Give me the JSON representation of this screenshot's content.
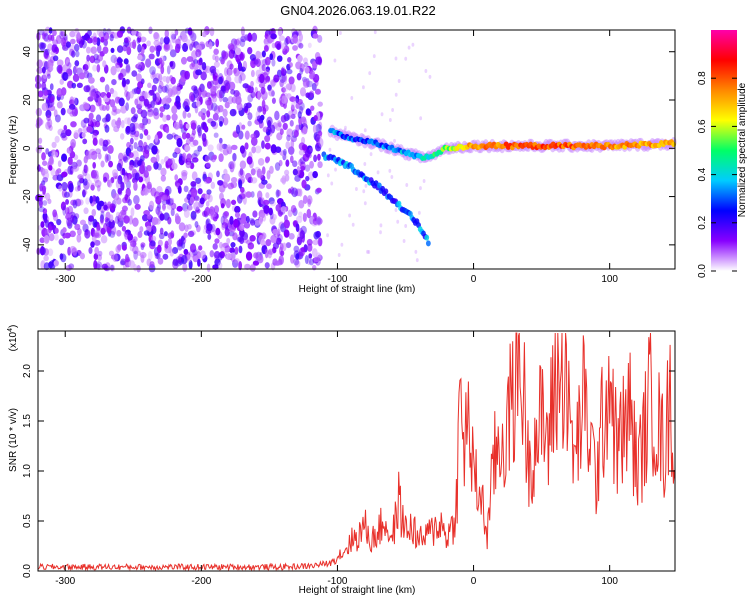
{
  "title": "GN04.2026.063.19.01.R22",
  "chart_data": [
    {
      "type": "heatmap",
      "xlabel": "Height of straight line (km)",
      "ylabel": "Frequency (Hz)",
      "xlim": [
        -320,
        148
      ],
      "ylim": [
        -50,
        49
      ],
      "xticks": [
        -300,
        -200,
        -100,
        0,
        100
      ],
      "yticks": [
        -40,
        -20,
        0,
        20,
        40
      ],
      "colorbar": {
        "label": "Normalized spectral amplitude",
        "range": [
          0.0,
          1.0
        ],
        "ticks": [
          "0.0",
          "0.2",
          "0.4",
          "0.6",
          "0.8"
        ],
        "tick_values": [
          0.0,
          0.2,
          0.4,
          0.6,
          0.8
        ],
        "colormap": [
          "#ffffff",
          "#8800ff",
          "#0000ff",
          "#00ccff",
          "#00ff66",
          "#ffff00",
          "#ff8800",
          "#ff0000",
          "#ff00aa"
        ]
      },
      "features": {
        "noise_region_x": [
          -320,
          -112
        ],
        "signal_track": [
          {
            "x": -105,
            "f": 7,
            "amp": 0.35
          },
          {
            "x": -95,
            "f": 5,
            "amp": 0.3
          },
          {
            "x": -80,
            "f": 3,
            "amp": 0.28
          },
          {
            "x": -65,
            "f": 1,
            "amp": 0.3
          },
          {
            "x": -50,
            "f": -2,
            "amp": 0.35
          },
          {
            "x": -35,
            "f": -4,
            "amp": 0.4
          },
          {
            "x": -20,
            "f": 0,
            "amp": 0.55
          },
          {
            "x": 0,
            "f": 1,
            "amp": 0.75
          },
          {
            "x": 50,
            "f": 1,
            "amp": 0.8
          },
          {
            "x": 100,
            "f": 1,
            "amp": 0.75
          },
          {
            "x": 148,
            "f": 2,
            "amp": 0.7
          }
        ],
        "descending_branch": [
          {
            "x": -110,
            "f": -3
          },
          {
            "x": -90,
            "f": -8
          },
          {
            "x": -70,
            "f": -16
          },
          {
            "x": -55,
            "f": -23
          },
          {
            "x": -40,
            "f": -32
          },
          {
            "x": -32,
            "f": -40
          }
        ]
      }
    },
    {
      "type": "line",
      "xlabel": "Height of straight line (km)",
      "ylabel": "SNR (10 * v/v)",
      "yscale_label": "(x10",
      "yscale_exp": "4",
      "xlim": [
        -320,
        148
      ],
      "ylim": [
        0,
        2.4
      ],
      "xticks": [
        -300,
        -200,
        -100,
        0,
        100
      ],
      "yticks": [
        "0.0",
        "0.5",
        "1.0",
        "1.5",
        "2.0"
      ],
      "ytick_values": [
        0.0,
        0.5,
        1.0,
        1.5,
        2.0
      ],
      "color": "#e8302a",
      "series": [
        {
          "x": [
            -320,
            -300,
            -280,
            -260,
            -240,
            -220,
            -200,
            -180,
            -160,
            -140,
            -120,
            -105,
            -100,
            -95,
            -90,
            -85,
            -80,
            -75,
            -70,
            -65,
            -60,
            -55,
            -50,
            -45,
            -40,
            -35,
            -30,
            -25,
            -20,
            -15,
            -12,
            -10,
            -8,
            -5,
            -2,
            0,
            5,
            10,
            15,
            20,
            25,
            30,
            33,
            36,
            40,
            45,
            50,
            55,
            60,
            65,
            67,
            70,
            75,
            80,
            85,
            90,
            95,
            100,
            105,
            110,
            115,
            120,
            125,
            130,
            135,
            140,
            145,
            148
          ],
          "y": [
            0.04,
            0.04,
            0.04,
            0.04,
            0.04,
            0.04,
            0.04,
            0.04,
            0.04,
            0.04,
            0.05,
            0.08,
            0.15,
            0.2,
            0.3,
            0.35,
            0.45,
            0.3,
            0.4,
            0.5,
            0.3,
            0.7,
            0.4,
            0.45,
            0.3,
            0.35,
            0.4,
            0.5,
            0.35,
            0.45,
            0.8,
            1.75,
            1.2,
            1.5,
            1.3,
            0.9,
            0.8,
            0.35,
            1.1,
            1.3,
            1.4,
            1.9,
            2.2,
            1.9,
            1.1,
            1.3,
            1.5,
            1.3,
            1.9,
            2.0,
            2.3,
            1.5,
            1.1,
            1.7,
            1.4,
            0.9,
            1.5,
            2.0,
            1.2,
            1.4,
            1.6,
            1.0,
            1.3,
            1.8,
            1.5,
            1.2,
            1.8,
            0.9
          ]
        }
      ]
    }
  ]
}
